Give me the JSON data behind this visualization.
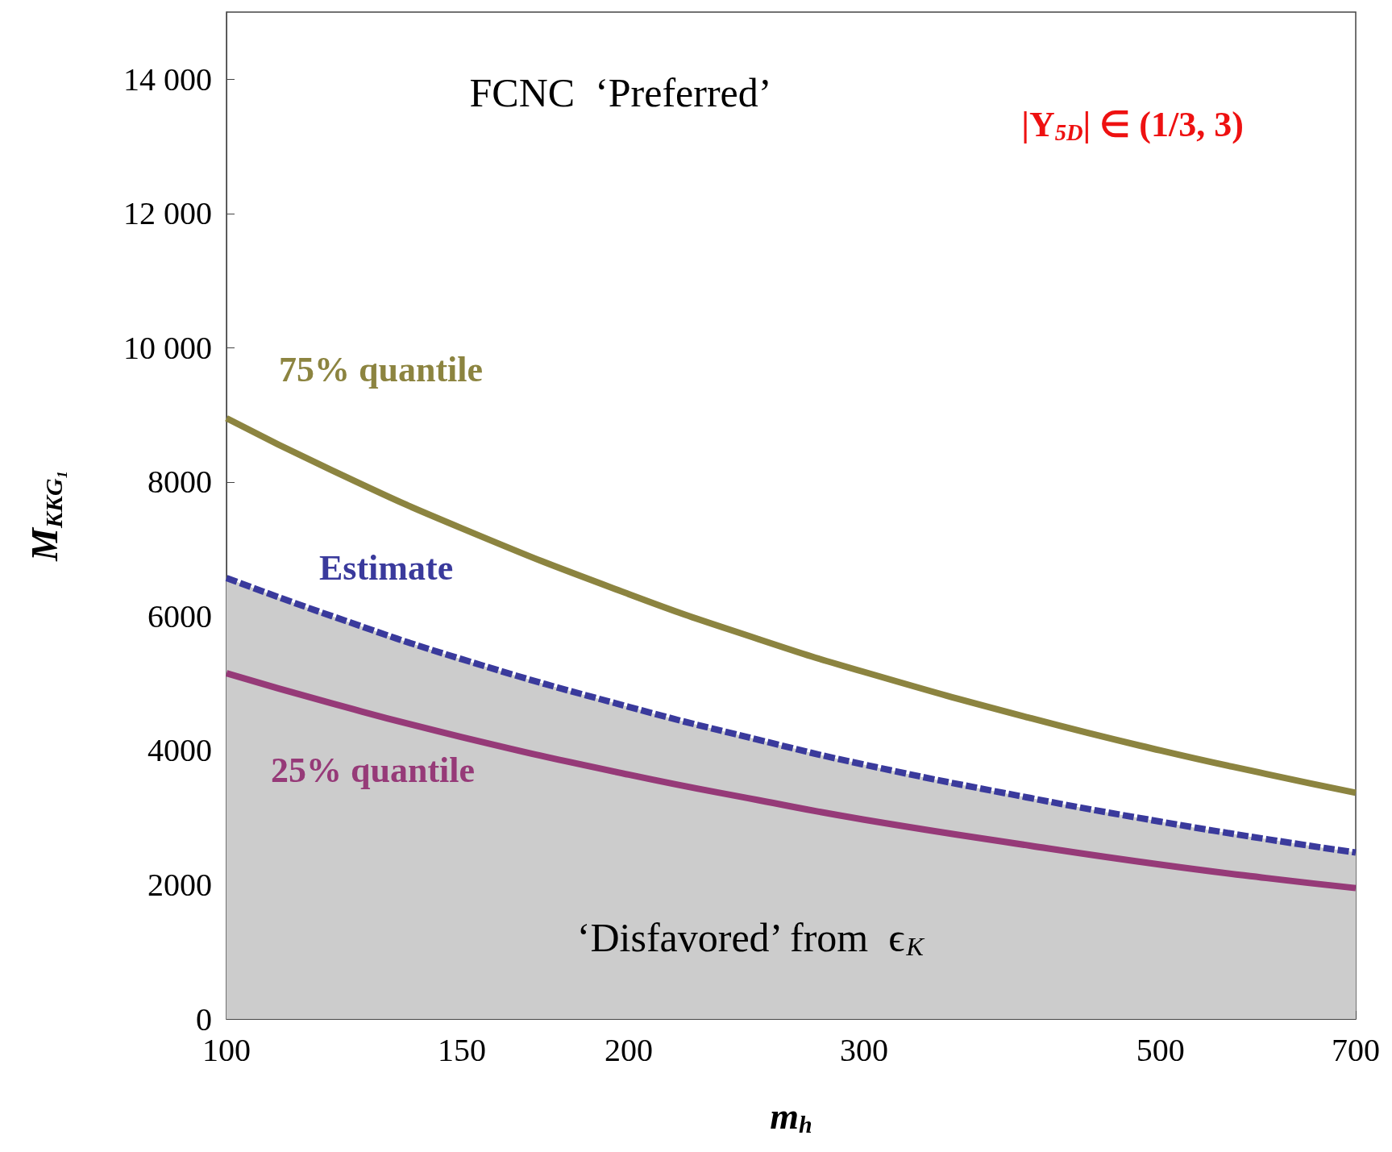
{
  "chart_data": {
    "type": "line",
    "xlabel": "m$_{h}$",
    "ylabel": "M$_{KKG₁}$",
    "x": [
      100,
      120,
      150,
      200,
      250,
      300,
      400,
      500,
      600,
      700
    ],
    "series": [
      {
        "name": "75% quantile",
        "color": "#8c8440",
        "values": [
          8950,
          8170,
          7310,
          6330,
          5660,
          5170,
          4480,
          4000,
          3650,
          3370
        ]
      },
      {
        "type": "area",
        "name": "Estimate",
        "color": "#3a3a9c",
        "line_style": "dashed",
        "values": [
          6570,
          6000,
          5360,
          4650,
          4160,
          3790,
          3290,
          2940,
          2680,
          2480
        ]
      },
      {
        "name": "25% quantile",
        "color": "#963a78",
        "values": [
          5150,
          4700,
          4200,
          3640,
          3260,
          2970,
          2580,
          2300,
          2100,
          1950
        ]
      }
    ],
    "annotations": [
      "FCNC  ‘Preferred’",
      "|Y$_{5D}$| ∈ (1/3, 3)",
      "‘Disfavored’ from  ϵ$_{K}$"
    ],
    "log": "x",
    "xlim": [
      100,
      700
    ],
    "xticks": [
      100,
      150,
      200,
      300,
      500,
      700
    ],
    "ylim": [
      0,
      15000
    ],
    "yticks": [
      0,
      2000,
      4000,
      6000,
      8000,
      {
        "value": 10000,
        "label": "10 000"
      },
      {
        "value": 12000,
        "label": "12 000"
      },
      {
        "value": 14000,
        "label": "14 000"
      }
    ],
    "grid": false,
    "legend": false
  }
}
